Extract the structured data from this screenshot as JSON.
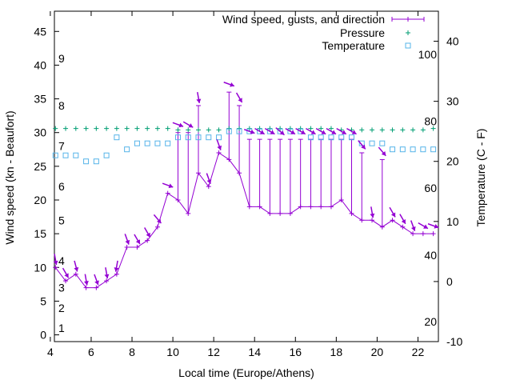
{
  "chart_data": {
    "type": "line",
    "xlabel": "Local time (Europe/Athens)",
    "ylabel": "Wind speed (kn - Beaufort)",
    "y2label": "Temperature (C - F)",
    "xlim": [
      4.2,
      23
    ],
    "ylim": [
      -1,
      48
    ],
    "y2lim": [
      -10,
      45
    ],
    "x_ticks": [
      4,
      6,
      8,
      10,
      12,
      14,
      16,
      18,
      20,
      22
    ],
    "y_ticks": [
      0,
      5,
      10,
      15,
      20,
      25,
      30,
      35,
      40,
      45
    ],
    "y2_ticks": [
      -10,
      0,
      10,
      20,
      30,
      40
    ],
    "fahrenheit_labels": [
      {
        "text": "20",
        "celsius": -6.7
      },
      {
        "text": "40",
        "celsius": 4.4
      },
      {
        "text": "60",
        "celsius": 15.6
      },
      {
        "text": "80",
        "celsius": 26.7
      },
      {
        "text": "100",
        "celsius": 37.8
      }
    ],
    "beaufort_labels": [
      {
        "text": "1",
        "knots": 1
      },
      {
        "text": "2",
        "knots": 4
      },
      {
        "text": "3",
        "knots": 7
      },
      {
        "text": "4",
        "knots": 11
      },
      {
        "text": "5",
        "knots": 17
      },
      {
        "text": "6",
        "knots": 22
      },
      {
        "text": "7",
        "knots": 28
      },
      {
        "text": "8",
        "knots": 34
      },
      {
        "text": "9",
        "knots": 41
      }
    ],
    "legend_position": "top-right",
    "series": [
      {
        "name": "Wind speed, gusts, and direction",
        "color": "#9400d3",
        "x": [
          4.25,
          4.75,
          5.25,
          5.75,
          6.25,
          6.75,
          7.25,
          7.75,
          8.25,
          8.75,
          9.25,
          9.75,
          10.25,
          10.75,
          11.25,
          11.75,
          12.25,
          12.75,
          13.25,
          13.75,
          14.25,
          14.75,
          15.25,
          15.75,
          16.25,
          16.75,
          17.25,
          17.75,
          18.25,
          18.75,
          19.25,
          19.75,
          20.25,
          20.75,
          21.25,
          21.75,
          22.25,
          22.75
        ],
        "speed": [
          10,
          8,
          9,
          7,
          7,
          8,
          9,
          13,
          13,
          14,
          16,
          21,
          20,
          18,
          24,
          22,
          27,
          26,
          24,
          19,
          19,
          18,
          18,
          18,
          19,
          19,
          19,
          19,
          20,
          18,
          17,
          17,
          16,
          17,
          16,
          15,
          15,
          15
        ],
        "gust": [
          10,
          8,
          9,
          7,
          7,
          8,
          9,
          13,
          13,
          14,
          16,
          21,
          30,
          30,
          34,
          22,
          27,
          36,
          34,
          29,
          29,
          29,
          29,
          29,
          29,
          29,
          29,
          29,
          29,
          29,
          27,
          17,
          26,
          17,
          16,
          15,
          15,
          15
        ],
        "direction_deg": [
          350,
          330,
          345,
          350,
          340,
          350,
          10,
          340,
          330,
          330,
          320,
          290,
          290,
          300,
          350,
          340,
          340,
          290,
          330,
          290,
          300,
          300,
          310,
          300,
          300,
          300,
          300,
          300,
          300,
          300,
          320,
          350,
          320,
          330,
          330,
          340,
          300,
          290
        ]
      },
      {
        "name": "Pressure",
        "color": "#009e73",
        "x": [
          4.25,
          4.75,
          5.25,
          5.75,
          6.25,
          6.75,
          7.25,
          7.75,
          8.25,
          8.75,
          9.25,
          9.75,
          10.25,
          10.75,
          11.25,
          11.75,
          12.25,
          12.75,
          13.25,
          13.75,
          14.25,
          14.75,
          15.25,
          15.75,
          16.25,
          16.75,
          17.25,
          17.75,
          18.25,
          18.75,
          19.25,
          19.75,
          20.25,
          20.75,
          21.25,
          21.75,
          22.25,
          22.75
        ],
        "plot_y": [
          30.6,
          30.6,
          30.6,
          30.6,
          30.6,
          30.6,
          30.6,
          30.6,
          30.6,
          30.6,
          30.6,
          30.6,
          30.4,
          30.4,
          30.4,
          30.4,
          30.4,
          30.6,
          30.6,
          30.6,
          30.6,
          30.6,
          30.6,
          30.6,
          30.6,
          30.6,
          30.6,
          30.6,
          30.4,
          30.4,
          30.4,
          30.4,
          30.4,
          30.4,
          30.4,
          30.4,
          30.4,
          30.6
        ]
      },
      {
        "name": "Temperature",
        "color": "#56b4e9",
        "x": [
          4.25,
          4.75,
          5.25,
          5.75,
          6.25,
          6.75,
          7.25,
          7.75,
          8.25,
          8.75,
          9.25,
          9.75,
          10.25,
          10.75,
          11.25,
          11.75,
          12.25,
          12.75,
          13.25,
          13.75,
          14.25,
          14.75,
          15.25,
          15.75,
          16.25,
          16.75,
          17.25,
          17.75,
          18.25,
          18.75,
          19.25,
          19.75,
          20.25,
          20.75,
          21.25,
          21.75,
          22.25,
          22.75
        ],
        "celsius": [
          21,
          21,
          21,
          20,
          20,
          21,
          24,
          22,
          23,
          23,
          23,
          23,
          24,
          24,
          24,
          24,
          24,
          25,
          25,
          25,
          25,
          25,
          25,
          25,
          25,
          24,
          24,
          24,
          24,
          24,
          23,
          23,
          23,
          22,
          22,
          22,
          22,
          22
        ]
      }
    ]
  }
}
